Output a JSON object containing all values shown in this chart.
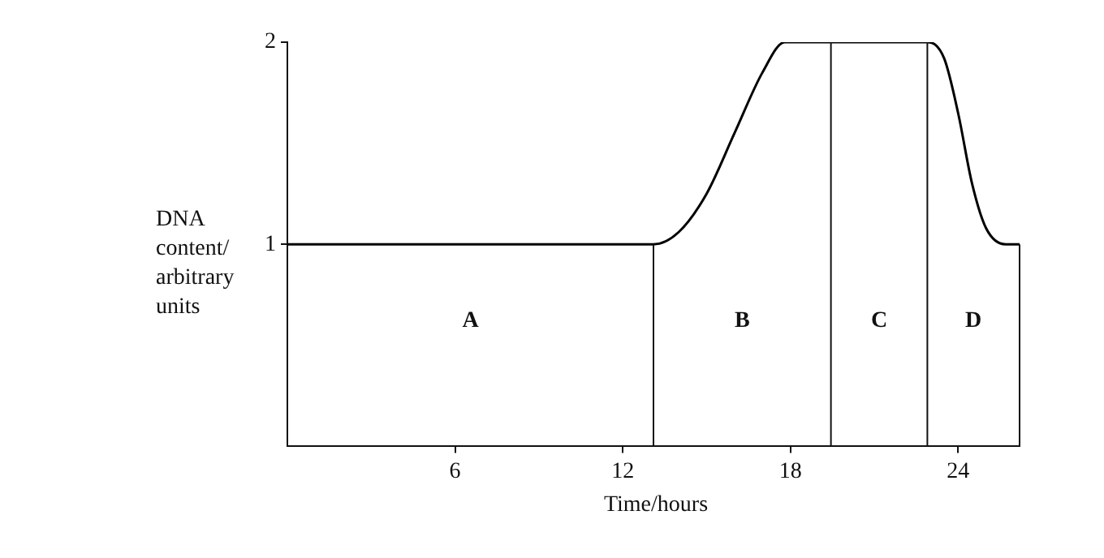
{
  "chart_data": {
    "type": "line",
    "xlabel": "Time/hours",
    "ylabel": "DNA content/ arbitrary units",
    "x": [
      0,
      13.1,
      14,
      15,
      16,
      17,
      17.8,
      22.9,
      23.5,
      24,
      24.5,
      25,
      25.7,
      26.2
    ],
    "series": [
      {
        "color": "#000000",
        "values": [
          1,
          1,
          1.06,
          1.25,
          1.55,
          1.85,
          2,
          2,
          1.92,
          1.65,
          1.3,
          1.08,
          1,
          1
        ]
      }
    ],
    "xlim": [
      0,
      26.2
    ],
    "xticks": [
      6,
      12,
      18,
      24
    ],
    "ylim": [
      0,
      2
    ],
    "yticks": [
      1,
      2
    ],
    "ref_lines": [
      {
        "axis": "x",
        "value": 13.1
      },
      {
        "axis": "x",
        "value": 19.45
      },
      {
        "axis": "x",
        "value": 22.9
      },
      {
        "axis": "x",
        "value": 26.2
      }
    ],
    "annotations": [
      "A",
      "B",
      "C",
      "D"
    ],
    "grid": false,
    "legend": false,
    "marker": "none",
    "line_style": "solid"
  }
}
